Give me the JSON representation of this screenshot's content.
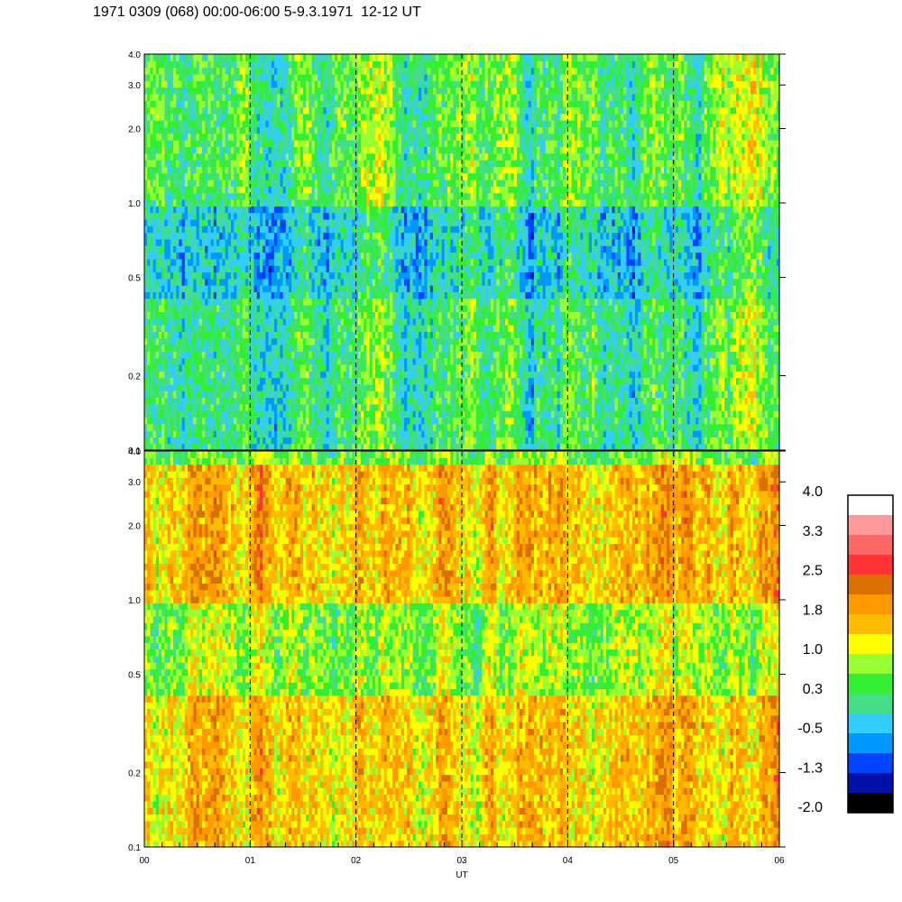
{
  "title": "1971 0309 (068) 00:00-06:00 5-9.3.1971  12-12 UT",
  "chart_data": {
    "type": "heatmap",
    "title": "1971 0309 (068) 00:00-06:00 5-9.3.1971  12-12 UT",
    "xlabel": "UT",
    "x_ticks": [
      "00",
      "01",
      "02",
      "03",
      "04",
      "05",
      "06"
    ],
    "xlim": [
      0,
      6
    ],
    "panels": [
      {
        "name": "upper",
        "ylim": [
          0.1,
          4.0
        ],
        "yscale": "log",
        "y_ticks": [
          "4.0",
          "3.0",
          "2.0",
          "1.0",
          "0.5",
          "0.2",
          "0.1"
        ],
        "y_tick_values": [
          4.0,
          3.0,
          2.0,
          1.0,
          0.5,
          0.2,
          0.1
        ],
        "dominant_level_by_frequency": [
          {
            "range": [
              0.1,
              0.4
            ],
            "level": 0.3
          },
          {
            "range": [
              0.4,
              1.0
            ],
            "level": -0.1
          },
          {
            "range": [
              1.0,
              4.0
            ],
            "level": 0.5
          }
        ]
      },
      {
        "name": "lower",
        "ylim": [
          0.1,
          4.0
        ],
        "yscale": "log",
        "y_ticks": [
          "4.0",
          "3.0",
          "2.0",
          "1.0",
          "0.5",
          "0.2",
          "0.1"
        ],
        "y_tick_values": [
          4.0,
          3.0,
          2.0,
          1.0,
          0.5,
          0.2,
          0.1
        ],
        "dominant_level_by_frequency": [
          {
            "range": [
              0.1,
              0.4
            ],
            "level": 1.6
          },
          {
            "range": [
              0.4,
              1.0
            ],
            "level": 0.9
          },
          {
            "range": [
              1.0,
              3.5
            ],
            "level": 1.7
          },
          {
            "range": [
              3.5,
              4.0
            ],
            "level": 0.7
          }
        ]
      }
    ],
    "vertical_markers": [
      1,
      2,
      3,
      4,
      5
    ],
    "colorbar": {
      "labels": [
        "4.0",
        "3.3",
        "2.5",
        "1.8",
        "1.0",
        "0.3",
        "-0.5",
        "-1.3",
        "-2.0"
      ],
      "range": [
        -2.0,
        4.0
      ],
      "colors": [
        "#ffffff",
        "#ff9999",
        "#ff6666",
        "#ff3333",
        "#d97000",
        "#ff9900",
        "#ffbb00",
        "#ffff00",
        "#99ff33",
        "#33ee33",
        "#44dd88",
        "#33ccff",
        "#0099ff",
        "#0044ff",
        "#0011aa",
        "#000000"
      ]
    }
  }
}
